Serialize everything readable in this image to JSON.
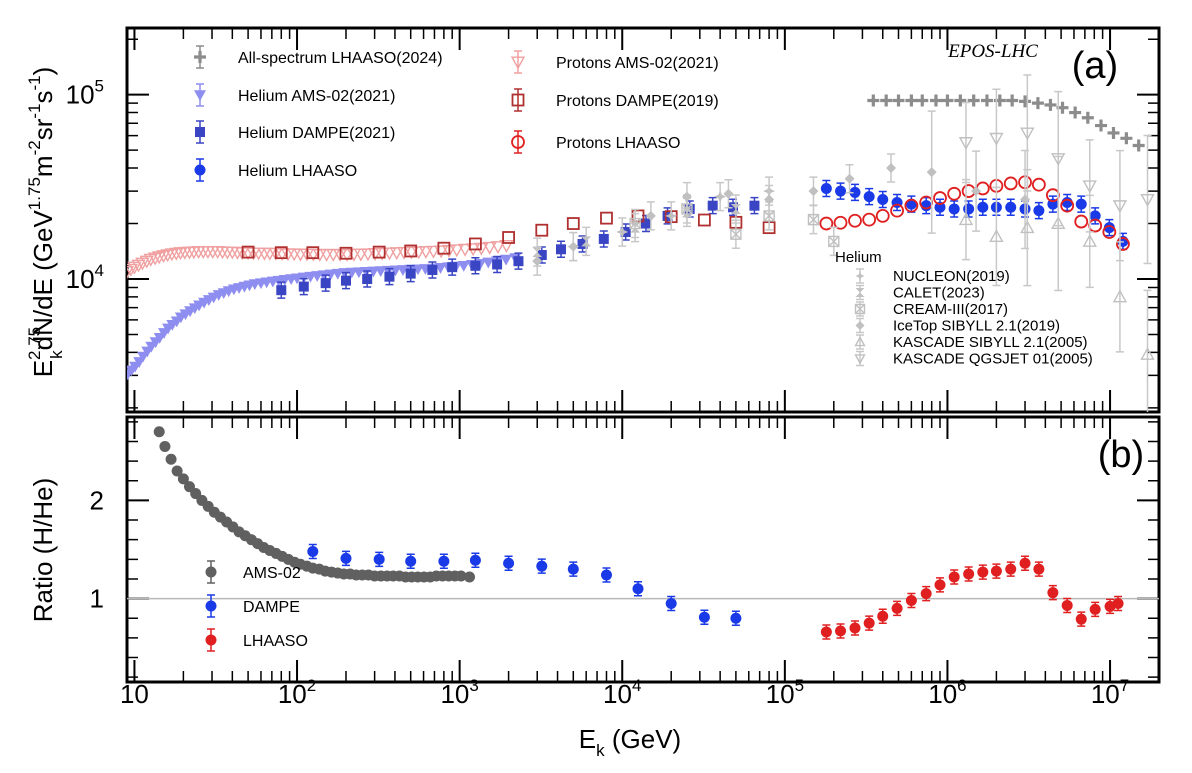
{
  "chart_data": [
    {
      "type": "scatter",
      "panel_label": "(a)",
      "annotation": "EPOS-LHC",
      "xlabel_text": "E",
      "xlabel_sub": "k",
      "xlabel_unit": " (GeV)",
      "ylabel_main": "E",
      "ylabel_sup": "2.75",
      "ylabel_sub": "k",
      "ylabel_rest": "dN/dE (GeV",
      "ylabel_sup2": "1.75",
      "ylabel_rest2": "m",
      "ylabel_sup3": "-2",
      "ylabel_rest3": "sr",
      "ylabel_sup4": "-1",
      "ylabel_rest4": "s",
      "ylabel_sup5": "-1",
      "ylabel_close": ")",
      "x_scale": "log",
      "y_scale": "log",
      "xlim": [
        9,
        20000000
      ],
      "ylim": [
        1900,
        230000
      ],
      "ytick_labels": [
        {
          "base": "10",
          "exp": "4",
          "value": 10000
        },
        {
          "base": "10",
          "exp": "5",
          "value": 100000
        }
      ],
      "legend_helium_title": "Helium",
      "series": [
        {
          "name": "All-spectrum LHAASO(2024)",
          "color": "#8c8c8c",
          "marker": "plus",
          "x": [
            350000,
            420000,
            500000,
            600000,
            700000,
            850000,
            1000000,
            1200000,
            1450000,
            1750000,
            2100000,
            2500000,
            3000000,
            3600000,
            4300000,
            5100000,
            6100000,
            7300000,
            8800000,
            10500000,
            12600000,
            15000000
          ],
          "y": [
            93000,
            93000,
            93000,
            93000,
            93000,
            93000,
            93000,
            93000,
            93000,
            93000,
            93000,
            93000,
            92000,
            90000,
            88000,
            85000,
            80000,
            75000,
            68000,
            62000,
            58000,
            53000
          ]
        },
        {
          "name": "Helium AMS-02(2021)",
          "color": "#8e8ef0",
          "marker": "tri-down",
          "x": [
            9.1,
            9.6,
            10.1,
            10.7,
            11.3,
            12,
            12.7,
            13.5,
            14.3,
            15.2,
            16.1,
            17.1,
            18.2,
            19.3,
            20.6,
            22,
            23.5,
            25,
            26.8,
            28.7,
            30.7,
            33,
            35.4,
            38,
            40.9,
            44,
            47.5,
            51,
            55,
            60,
            65,
            71,
            77,
            84,
            92,
            100,
            110,
            121,
            133,
            146,
            161,
            178,
            196,
            217,
            240,
            266,
            295,
            327,
            363,
            403,
            448,
            498,
            554,
            616,
            685,
            762,
            850,
            950,
            1060,
            1190,
            1340,
            1500,
            1700,
            1930,
            2200
          ],
          "y": [
            3050,
            3200,
            3350,
            3550,
            3800,
            4050,
            4300,
            4550,
            4800,
            5100,
            5400,
            5650,
            5900,
            6200,
            6450,
            6700,
            6950,
            7200,
            7450,
            7700,
            7950,
            8200,
            8400,
            8600,
            8800,
            8950,
            9100,
            9250,
            9400,
            9500,
            9600,
            9700,
            9800,
            9900,
            10000,
            10100,
            10200,
            10300,
            10400,
            10500,
            10600,
            10700,
            10800,
            10850,
            10900,
            10950,
            11000,
            11050,
            11100,
            11150,
            11200,
            11250,
            11300,
            11350,
            11400,
            11500,
            11600,
            11700,
            11800,
            11950,
            12100,
            12300,
            12500,
            12750,
            13000
          ]
        },
        {
          "name": "Helium DAMPE(2021)",
          "color": "#3a45c4",
          "marker": "square",
          "x": [
            80,
            110,
            150,
            200,
            270,
            370,
            500,
            680,
            900,
            1250,
            1700,
            2300,
            3200,
            4200,
            5700,
            7700,
            10500,
            14000,
            19000,
            26000,
            36000,
            48000,
            65000
          ],
          "y": [
            8700,
            9100,
            9500,
            9800,
            10000,
            10300,
            10700,
            11200,
            11600,
            11800,
            12000,
            12500,
            13500,
            14500,
            15500,
            16500,
            18000,
            20000,
            22000,
            24000,
            25000,
            24500,
            25000
          ]
        },
        {
          "name": "Helium LHAASO",
          "color": "#1a3ae8",
          "marker": "circle",
          "x": [
            180000,
            220000,
            270000,
            330000,
            400000,
            490000,
            600000,
            740000,
            900000,
            1100000,
            1350000,
            1650000,
            2000000,
            2450000,
            3000000,
            3650000,
            4450000,
            5450000,
            6650000,
            8100000,
            9900000,
            12000000
          ],
          "y": [
            31000,
            30000,
            29500,
            28000,
            27000,
            26000,
            25500,
            25000,
            24500,
            24000,
            24000,
            24500,
            24500,
            24500,
            24000,
            23500,
            25500,
            26000,
            25500,
            22000,
            19000,
            16000
          ]
        },
        {
          "name": "Protons AMS-02(2021)",
          "color": "#f0a0a0",
          "marker": "tri-down-open",
          "x": [
            9,
            9.5,
            10,
            10.6,
            11.2,
            11.9,
            12.6,
            13.4,
            14.2,
            15.1,
            16,
            17,
            18.1,
            19.2,
            20.4,
            21.8,
            23.2,
            24.8,
            26.5,
            28.3,
            30.3,
            32.5,
            34.8,
            37.3,
            40,
            43,
            46,
            50,
            54,
            58,
            63,
            68,
            74,
            81,
            88,
            96,
            105,
            115,
            126,
            138,
            152,
            167,
            184,
            203,
            224,
            247,
            273,
            302,
            334,
            370,
            410,
            455,
            505,
            560,
            620,
            690,
            770,
            860,
            960,
            1080,
            1210,
            1360,
            1530,
            1720,
            1940
          ],
          "y": [
            11000,
            11300,
            11600,
            11900,
            12200,
            12500,
            12800,
            13000,
            13200,
            13400,
            13550,
            13700,
            13800,
            13900,
            13950,
            14000,
            14050,
            14100,
            14100,
            14100,
            14100,
            14100,
            14050,
            14000,
            14000,
            13950,
            13900,
            13900,
            13850,
            13850,
            13800,
            13800,
            13800,
            13750,
            13700,
            13700,
            13650,
            13650,
            13650,
            13600,
            13600,
            13600,
            13600,
            13600,
            13650,
            13650,
            13700,
            13750,
            13800,
            13850,
            13900,
            13950,
            14000,
            14050,
            14100,
            14150,
            14200,
            14300,
            14400,
            14500,
            14600,
            14700,
            14850,
            15000,
            15200
          ]
        },
        {
          "name": "Protons DAMPE(2019)",
          "color": "#b03030",
          "marker": "square-open",
          "x": [
            50,
            80,
            125,
            200,
            320,
            500,
            800,
            1250,
            2000,
            3200,
            5000,
            8000,
            12500,
            20000,
            32000,
            50000,
            80000
          ],
          "y": [
            14000,
            13900,
            13900,
            13800,
            14000,
            14200,
            14700,
            15500,
            16800,
            18400,
            20000,
            21400,
            22000,
            21800,
            20900,
            20300,
            19000
          ]
        },
        {
          "name": "Protons LHAASO",
          "color": "#e02020",
          "marker": "circle-open",
          "x": [
            180000,
            220000,
            270000,
            330000,
            400000,
            490000,
            600000,
            740000,
            900000,
            1100000,
            1350000,
            1650000,
            2000000,
            2450000,
            3000000,
            3650000,
            4450000,
            5450000,
            6650000,
            8100000,
            9900000,
            12000000
          ],
          "y": [
            20000,
            20200,
            20700,
            21000,
            22000,
            23500,
            25000,
            26000,
            27500,
            29000,
            30000,
            31000,
            32000,
            33000,
            33500,
            32500,
            28500,
            25000,
            20500,
            19500,
            18000,
            15500
          ]
        },
        {
          "name": "NUCLEON(2019)",
          "color": "#c0c0c0",
          "marker": "star",
          "x": [
            5000,
            10000,
            20000,
            40000,
            80000
          ],
          "y": [
            15000,
            18000,
            22000,
            28000,
            30000
          ]
        },
        {
          "name": "CALET(2023)",
          "color": "#c0c0c0",
          "marker": "hourglass",
          "x": [
            3000,
            6000,
            12000,
            25000,
            50000
          ],
          "y": [
            14000,
            16000,
            19000,
            23000,
            24000
          ]
        },
        {
          "name": "CREAM-III(2017)",
          "color": "#c0c0c0",
          "marker": "square-x",
          "x": [
            12000,
            25000,
            50000,
            80000,
            150000,
            200000
          ],
          "y": [
            20000,
            24000,
            17500,
            22000,
            21000,
            16000
          ]
        },
        {
          "name": "IceTop SIBYLL 2.1(2019)",
          "color": "#c0c0c0",
          "marker": "diamond",
          "x": [
            3000,
            5000,
            15000,
            25000,
            45000,
            80000,
            150000,
            250000,
            450000,
            800000,
            1500000,
            3000000
          ],
          "y": [
            12500,
            15000,
            22000,
            28000,
            29000,
            27000,
            30000,
            35000,
            40000,
            38000,
            30000,
            27000
          ]
        },
        {
          "name": "KASCADE SIBYLL 2.1(2005)",
          "color": "#c0c0c0",
          "marker": "tri-up-open",
          "x": [
            1300000,
            2000000,
            3100000,
            4800000,
            7500000,
            11500000,
            17000000
          ],
          "y": [
            21000,
            17000,
            19000,
            20000,
            16000,
            8000,
            3900
          ]
        },
        {
          "name": "KASCADE QGSJET 01(2005)",
          "color": "#c0c0c0",
          "marker": "tri-down-open",
          "x": [
            1300000,
            2000000,
            3100000,
            4800000,
            7500000,
            11500000,
            17000000
          ],
          "y": [
            55000,
            58000,
            62000,
            45000,
            32000,
            25000,
            27000
          ]
        }
      ]
    },
    {
      "type": "scatter",
      "panel_label": "(b)",
      "ylabel": "Ratio (H/He)",
      "xlabel_text": "E",
      "xlabel_sub": "k",
      "xlabel_unit": " (GeV)",
      "x_scale": "log",
      "y_scale": "linear",
      "xlim": [
        9,
        20000000
      ],
      "ylim": [
        0.15,
        2.85
      ],
      "yticks": [
        1,
        2
      ],
      "ytick_labels": [
        "1",
        "2"
      ],
      "reference_line": 1,
      "xtick_labels": [
        {
          "base": "10",
          "exp": "",
          "value": 10
        },
        {
          "base": "10",
          "exp": "2",
          "value": 100
        },
        {
          "base": "10",
          "exp": "3",
          "value": 1000
        },
        {
          "base": "10",
          "exp": "4",
          "value": 10000
        },
        {
          "base": "10",
          "exp": "5",
          "value": 100000
        },
        {
          "base": "10",
          "exp": "6",
          "value": 1000000
        },
        {
          "base": "10",
          "exp": "7",
          "value": 10000000
        }
      ],
      "series": [
        {
          "name": "AMS-02",
          "color": "#606060",
          "marker": "circle",
          "x": [
            14.2,
            15.4,
            16.8,
            18.3,
            20,
            21.8,
            23.8,
            26,
            28.4,
            31,
            33.8,
            36.9,
            40.3,
            44,
            48,
            52.4,
            57.2,
            62.4,
            68,
            74.3,
            81,
            88.4,
            96.5,
            105,
            115,
            125,
            137,
            149,
            163,
            178,
            194,
            212,
            231,
            252,
            275,
            300,
            328,
            358,
            390,
            426,
            465,
            507,
            553,
            604,
            659,
            719,
            785,
            857,
            935,
            1020,
            1150
          ],
          "y": [
            2.7,
            2.55,
            2.42,
            2.3,
            2.22,
            2.14,
            2.07,
            2.0,
            1.94,
            1.88,
            1.83,
            1.78,
            1.73,
            1.68,
            1.64,
            1.6,
            1.56,
            1.52,
            1.49,
            1.46,
            1.43,
            1.4,
            1.37,
            1.35,
            1.33,
            1.31,
            1.3,
            1.28,
            1.27,
            1.26,
            1.25,
            1.25,
            1.24,
            1.24,
            1.24,
            1.23,
            1.23,
            1.23,
            1.23,
            1.23,
            1.22,
            1.22,
            1.22,
            1.22,
            1.22,
            1.23,
            1.23,
            1.23,
            1.23,
            1.23,
            1.22
          ]
        },
        {
          "name": "DAMPE",
          "color": "#1a3ae8",
          "marker": "circle",
          "x": [
            125,
            200,
            320,
            500,
            800,
            1250,
            2000,
            3200,
            5000,
            8000,
            12500,
            20000,
            32000,
            50000
          ],
          "y": [
            1.48,
            1.41,
            1.4,
            1.38,
            1.38,
            1.39,
            1.36,
            1.33,
            1.3,
            1.24,
            1.1,
            0.95,
            0.81,
            0.8
          ]
        },
        {
          "name": "LHAASO",
          "color": "#e02020",
          "marker": "circle",
          "x": [
            180000,
            220000,
            270000,
            330000,
            400000,
            490000,
            600000,
            740000,
            900000,
            1100000,
            1350000,
            1650000,
            2000000,
            2450000,
            3000000,
            3650000,
            4450000,
            5450000,
            6650000,
            8100000,
            10000000,
            11200000
          ],
          "y": [
            0.66,
            0.67,
            0.7,
            0.75,
            0.82,
            0.9,
            0.98,
            1.05,
            1.14,
            1.22,
            1.25,
            1.27,
            1.28,
            1.3,
            1.36,
            1.3,
            1.06,
            0.93,
            0.79,
            0.89,
            0.92,
            0.95
          ]
        }
      ]
    }
  ]
}
